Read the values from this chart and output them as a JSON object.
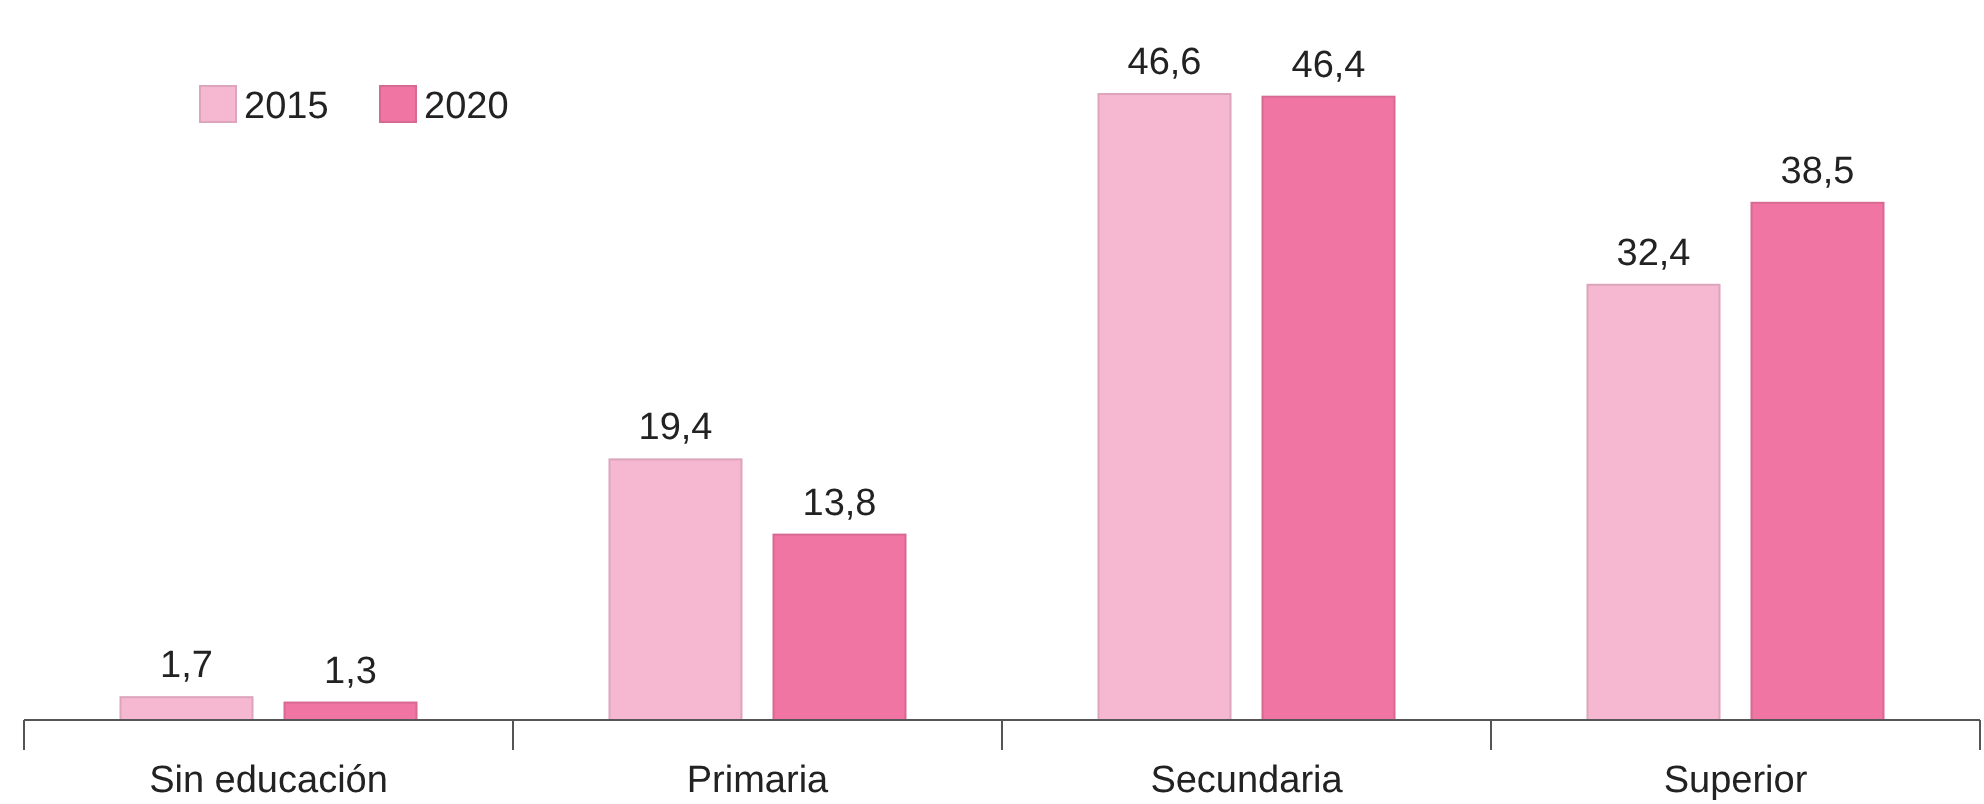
{
  "chart_data": {
    "type": "bar",
    "categories": [
      "Sin educación",
      "Primaria",
      "Secundaria",
      "Superior"
    ],
    "series": [
      {
        "name": "2015",
        "color": "#f5b8d0",
        "values": [
          1.7,
          19.4,
          46.6,
          32.4
        ],
        "value_labels": [
          "1,7",
          "19,4",
          "46,6",
          "32,4"
        ]
      },
      {
        "name": "2020",
        "color": "#f075a3",
        "values": [
          1.3,
          13.8,
          46.4,
          38.5
        ],
        "value_labels": [
          "1,3",
          "13,8",
          "46,4",
          "38,5"
        ]
      }
    ],
    "legend": "top left"
  }
}
